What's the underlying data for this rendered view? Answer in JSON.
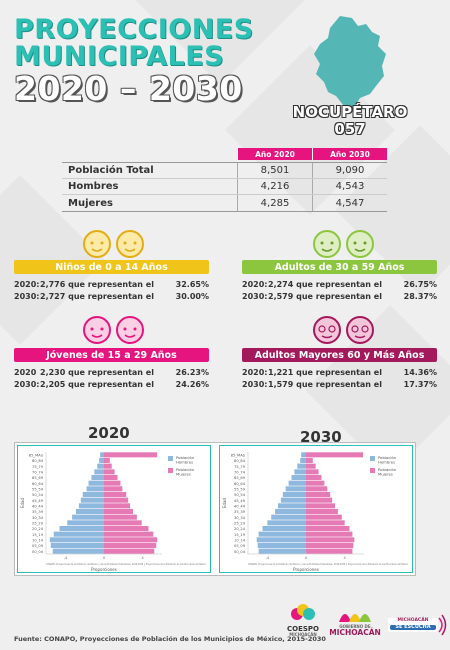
{
  "header": {
    "line1": "PROYECCIONES",
    "line2": "MUNICIPALES",
    "line3": "2020 – 2030"
  },
  "municipality": {
    "name": "NOCUPÉTARO",
    "code": "057",
    "map_color": "#54b7b5"
  },
  "population_table": {
    "headers": [
      "Año 2020",
      "Año 2030"
    ],
    "rows": [
      {
        "label": "Población Total",
        "y2020": "8,501",
        "y2030": "9,090"
      },
      {
        "label": "Hombres",
        "y2020": "4,216",
        "y2030": "4,543"
      },
      {
        "label": "Mujeres",
        "y2020": "4,285",
        "y2030": "4,547"
      }
    ]
  },
  "groups": [
    {
      "id": "ninos",
      "title": "Niños de 0 a 14 Años",
      "color": "#f0c419",
      "stats": [
        {
          "year": "2020:",
          "text": "2,776 que representan el",
          "pct": "32.65%"
        },
        {
          "year": "2030:",
          "text": "2,727 que representan el",
          "pct": "30.00%"
        }
      ]
    },
    {
      "id": "adultos",
      "title": "Adultos de 30 a 59 Años",
      "color": "#8cc63f",
      "stats": [
        {
          "year": "2020:",
          "text": "2,274 que representan el",
          "pct": "26.75%"
        },
        {
          "year": "2030:",
          "text": "2,579 que representan el",
          "pct": "28.37%"
        }
      ]
    },
    {
      "id": "jovenes",
      "title": "Jóvenes de 15 a 29 Años",
      "color": "#e6147e",
      "stats": [
        {
          "year": "2020",
          "text": "2,230 que representan el",
          "pct": "26.23%"
        },
        {
          "year": "2030:",
          "text": "2,205 que representan el",
          "pct": "24.26%"
        }
      ]
    },
    {
      "id": "mayores",
      "title": "Adultos Mayores  60 y Más Años",
      "color": "#a3195b",
      "stats": [
        {
          "year": "2020:",
          "text": "1,221 que representan el",
          "pct": "14.36%"
        },
        {
          "year": "2030:",
          "text": "1,579 que representan el",
          "pct": "17.37%"
        }
      ]
    }
  ],
  "chart_data": [
    {
      "type": "bar",
      "title": "2020",
      "orientation": "horizontal-pyramid",
      "xlabel": "Proporciones",
      "ylabel": "Edad",
      "categories": [
        "00_04",
        "05_09",
        "10_14",
        "15_19",
        "20_24",
        "25_29",
        "30_34",
        "35_39",
        "40_44",
        "45_49",
        "50_54",
        "55_59",
        "60_64",
        "65_69",
        "70_74",
        "75_79",
        "80_84",
        "85_MAS"
      ],
      "series": [
        {
          "name": "Población Hombres",
          "color": "#8fb8de",
          "values": [
            -5.3,
            -5.5,
            -5.6,
            -5.2,
            -4.6,
            -3.8,
            -3.3,
            -2.9,
            -2.6,
            -2.4,
            -2.2,
            -1.8,
            -1.6,
            -1.3,
            -1.0,
            -0.7,
            -0.5,
            -0.4
          ]
        },
        {
          "name": "Población Mujeres",
          "color": "#e57ab5",
          "values": [
            5.2,
            5.4,
            5.5,
            5.1,
            4.6,
            3.9,
            3.4,
            3.0,
            2.7,
            2.5,
            2.3,
            1.9,
            1.7,
            1.4,
            1.1,
            0.8,
            0.6,
            5.5
          ]
        }
      ],
      "xlim": [
        -6,
        6
      ],
      "legend": "top-right"
    },
    {
      "type": "bar",
      "title": "2030",
      "orientation": "horizontal-pyramid",
      "xlabel": "Proporciones",
      "ylabel": "Edad",
      "categories": [
        "00_04",
        "05_09",
        "10_14",
        "15_19",
        "20_24",
        "25_29",
        "30_34",
        "35_39",
        "40_44",
        "45_49",
        "50_54",
        "55_59",
        "60_64",
        "65_69",
        "70_74",
        "75_79",
        "80_84",
        "85_MAS"
      ],
      "series": [
        {
          "name": "Población Hombres",
          "color": "#8fb8de",
          "values": [
            -4.9,
            -5.0,
            -5.1,
            -4.9,
            -4.5,
            -4.0,
            -3.6,
            -3.2,
            -2.9,
            -2.6,
            -2.4,
            -2.1,
            -1.8,
            -1.5,
            -1.2,
            -0.9,
            -0.6,
            -0.5
          ]
        },
        {
          "name": "Población Mujeres",
          "color": "#e57ab5",
          "values": [
            4.8,
            4.9,
            5.0,
            4.8,
            4.5,
            4.0,
            3.7,
            3.3,
            3.0,
            2.7,
            2.5,
            2.2,
            1.9,
            1.6,
            1.3,
            1.0,
            0.7,
            5.9
          ]
        }
      ],
      "xlim": [
        -6,
        6
      ],
      "legend": "top-right"
    }
  ],
  "pyramid_note": "CONAPO. Proyecciones de la Población de México y de las Entidades Federativas, 2016-2050 y Proyecciones de la Población de los Municipios de México",
  "footer": {
    "source": "Fuente: CONAPO, Proyecciones de Población de los Municipios de México, 2015-2030",
    "logo1_line1": "COESPO",
    "logo1_line2": "MICHOACÁN",
    "logo2_line1": "GOBIERNO DE",
    "logo2_line2": "MICHOACÁN",
    "logo3_line1": "MICHOACÁN",
    "logo3_line2": "SE ESCUCHA"
  }
}
